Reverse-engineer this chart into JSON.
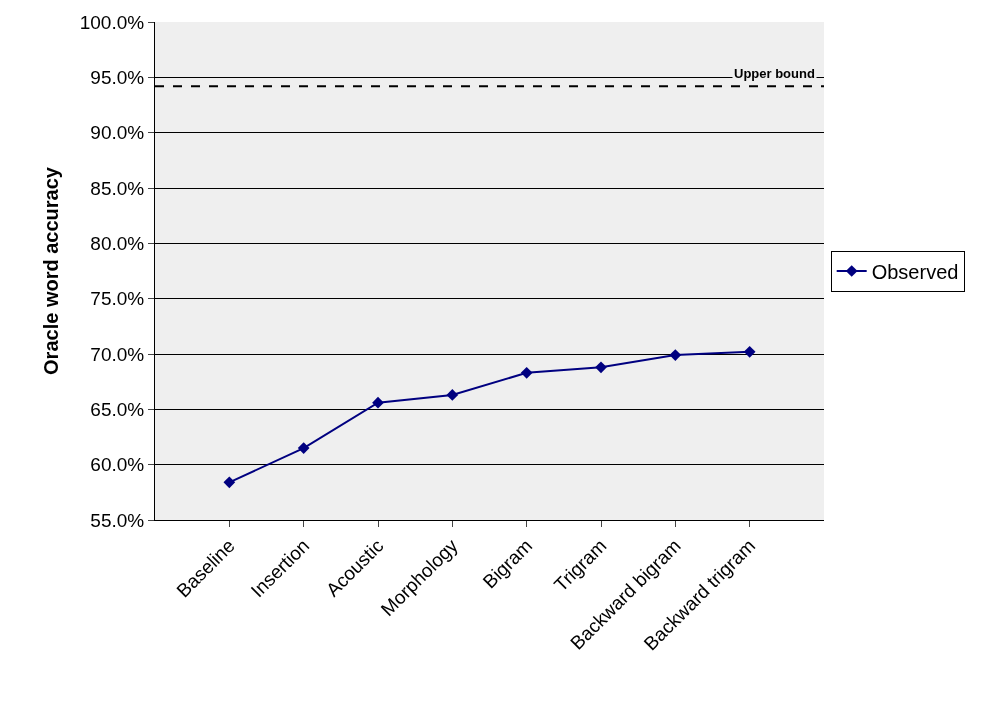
{
  "chart_data": {
    "type": "line",
    "ylabel": "Oracle word accuracy",
    "categories": [
      "Baseline",
      "Insertion",
      "Acoustic",
      "Morphology",
      "Bigram",
      "Trigram",
      "Backward bigram",
      "Backward trigram"
    ],
    "series": [
      {
        "name": "Observed",
        "color": "#000080",
        "values": [
          58.4,
          61.5,
          65.6,
          66.3,
          68.3,
          68.8,
          69.9,
          70.2
        ]
      }
    ],
    "ylim": [
      55,
      100
    ],
    "yticks": [
      {
        "value": 55,
        "label": "55.0%"
      },
      {
        "value": 60,
        "label": "60.0%"
      },
      {
        "value": 65,
        "label": "65.0%"
      },
      {
        "value": 70,
        "label": "70.0%"
      },
      {
        "value": 75,
        "label": "75.0%"
      },
      {
        "value": 80,
        "label": "80.0%"
      },
      {
        "value": 85,
        "label": "85.0%"
      },
      {
        "value": 90,
        "label": "90.0%"
      },
      {
        "value": 95,
        "label": "95.0%"
      },
      {
        "value": 100,
        "label": "100.0%"
      }
    ],
    "ref_lines": [
      {
        "axis": "y",
        "value": 94.2,
        "label": "Upper bound",
        "color": "#000000",
        "line_style": "dashed"
      }
    ],
    "grid": "y",
    "legend": "right",
    "marker": "diamond",
    "line_style": "solid"
  }
}
